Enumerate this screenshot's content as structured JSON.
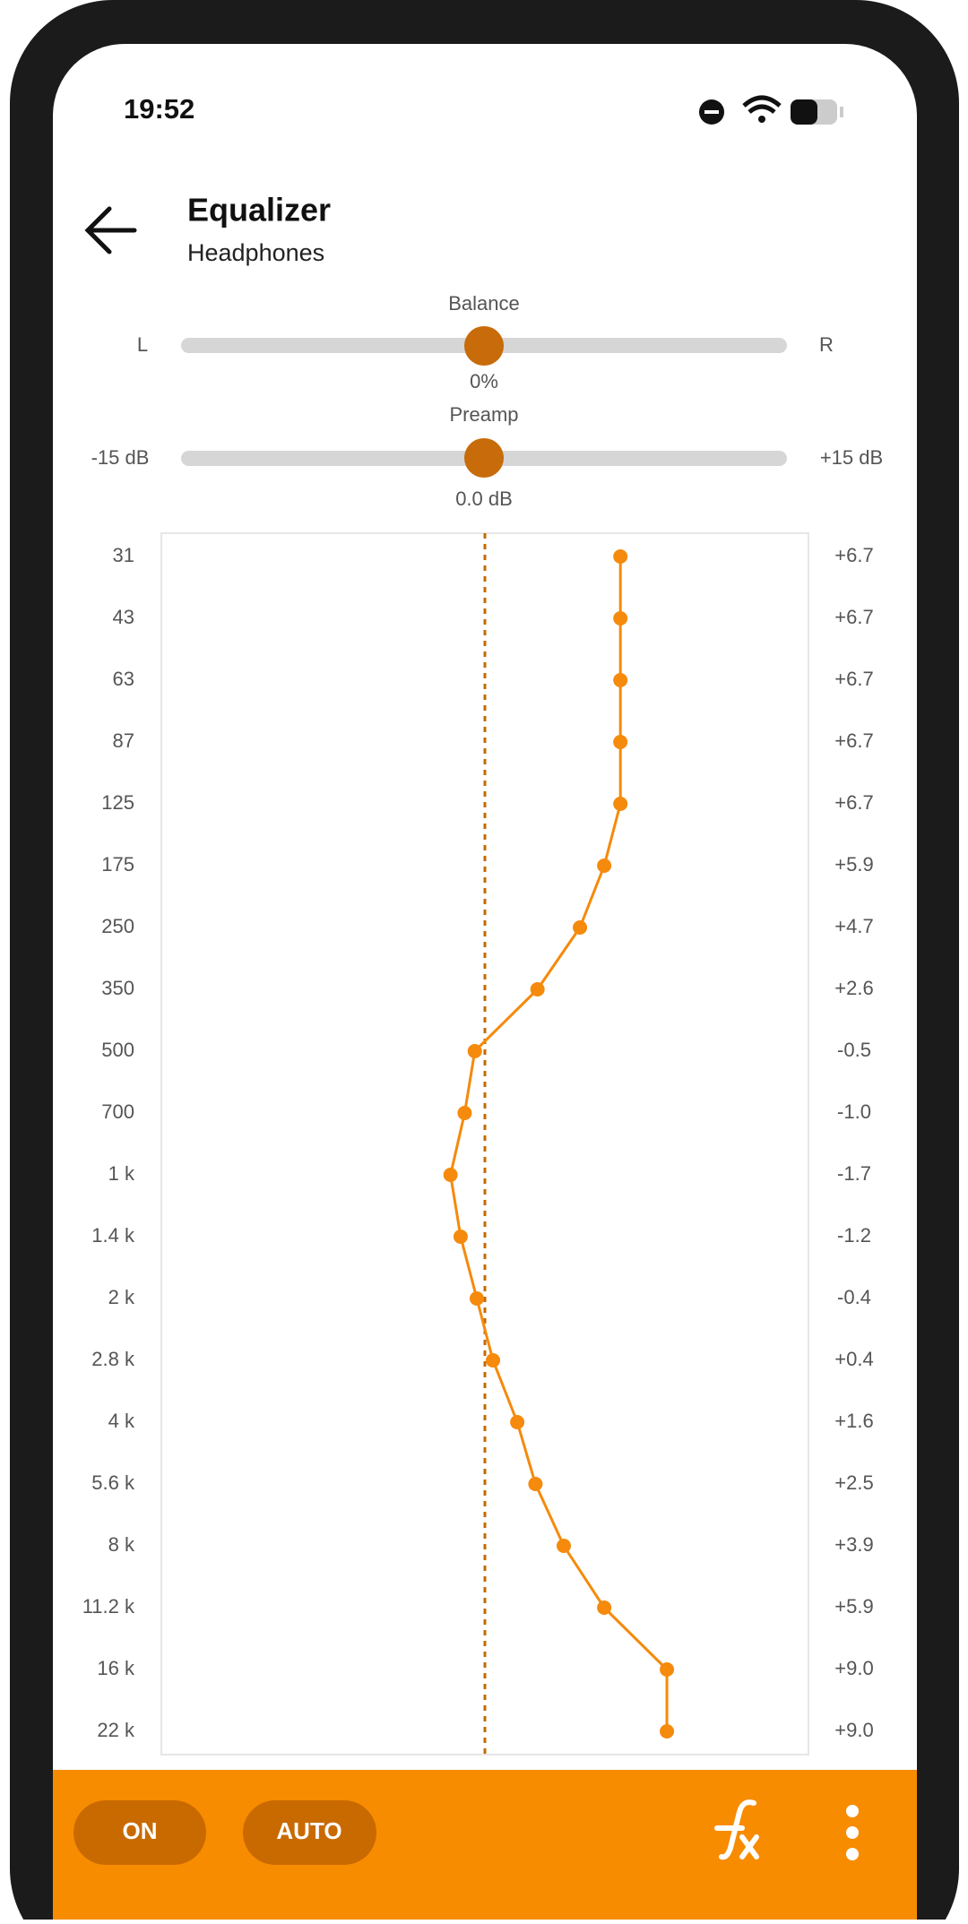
{
  "status_bar": {
    "time": "19:52"
  },
  "header": {
    "title": "Equalizer",
    "subtitle": "Headphones"
  },
  "balance": {
    "label": "Balance",
    "min_label": "L",
    "max_label": "R",
    "value_label": "0%"
  },
  "preamp": {
    "label": "Preamp",
    "min": {
      "value": -15,
      "label": "-15 dB"
    },
    "max": {
      "value": 15,
      "label": "+15 dB"
    },
    "value": {
      "value": 0,
      "label": "0.0 dB"
    }
  },
  "chart_data": {
    "type": "line",
    "orientation": "horizontal",
    "categories": [
      "31",
      "43",
      "63",
      "87",
      "125",
      "175",
      "250",
      "350",
      "500",
      "700",
      "1 k",
      "1.4 k",
      "2 k",
      "2.8 k",
      "4 k",
      "5.6 k",
      "8 k",
      "11.2 k",
      "16 k",
      "22 k"
    ],
    "values": [
      6.7,
      6.7,
      6.7,
      6.7,
      6.7,
      5.9,
      4.7,
      2.6,
      -0.5,
      -1.0,
      -1.7,
      -1.2,
      -0.4,
      0.4,
      1.6,
      2.5,
      3.9,
      5.9,
      9.0,
      9.0
    ],
    "value_labels": [
      "+6.7",
      "+6.7",
      "+6.7",
      "+6.7",
      "+6.7",
      "+5.9",
      "+4.7",
      "+2.6",
      "-0.5",
      "-1.0",
      "-1.7",
      "-1.2",
      "-0.4",
      "+0.4",
      "+1.6",
      "+2.5",
      "+3.9",
      "+5.9",
      "+9.0",
      "+9.0"
    ],
    "xlim": [
      -16,
      16
    ],
    "color": "#f58a0c"
  },
  "bottom_bar": {
    "on_button": "ON",
    "auto_button": "AUTO"
  }
}
